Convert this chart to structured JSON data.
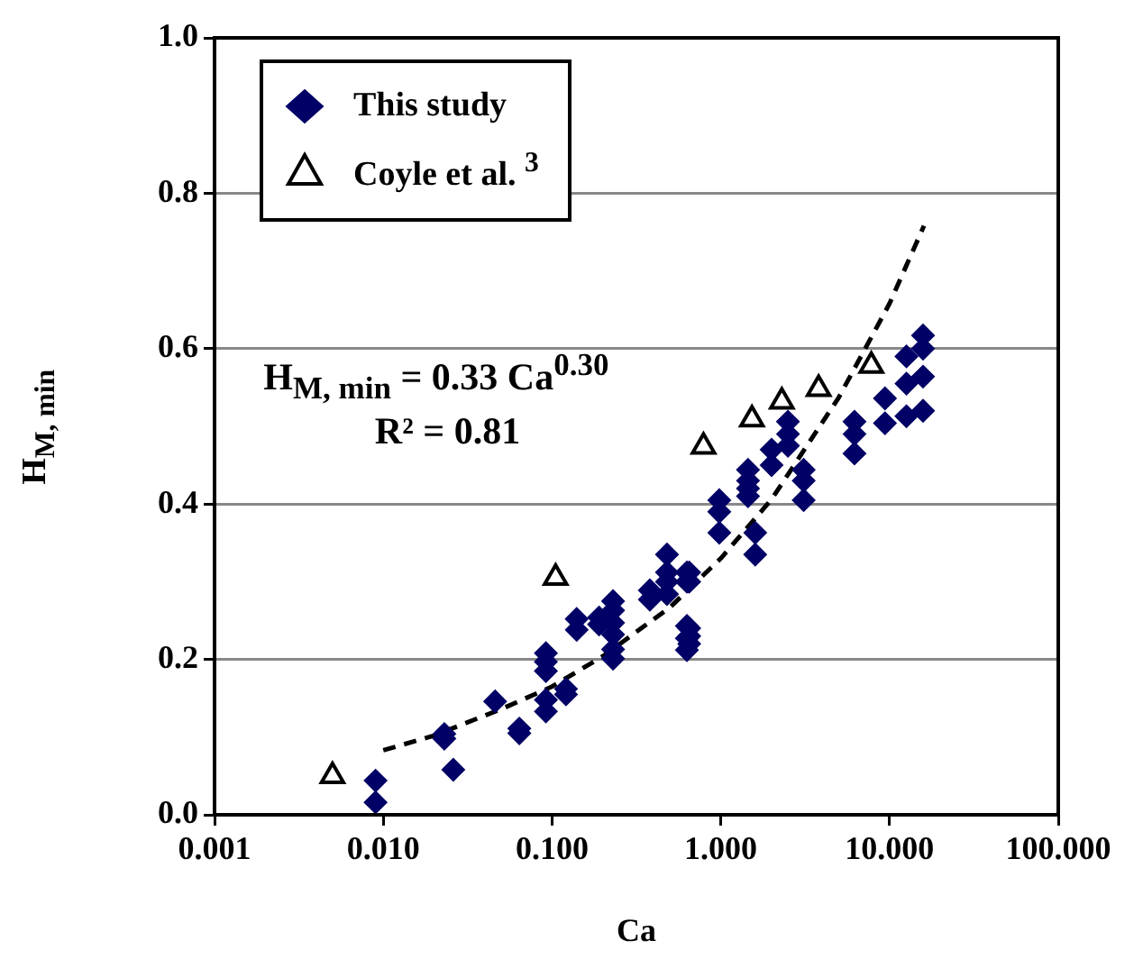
{
  "chart_data": {
    "type": "scatter",
    "xlabel": "Ca",
    "ylabel": "H$_{M, min}$",
    "log": "x",
    "grid": "y",
    "legend": "top left",
    "xlim": [
      0.001,
      100
    ],
    "xticks": [
      {
        "value": 0.001,
        "label": "0.001"
      },
      {
        "value": 0.01,
        "label": "0.010"
      },
      {
        "value": 0.1,
        "label": "0.100"
      },
      {
        "value": 1,
        "label": "1.000"
      },
      {
        "value": 10,
        "label": "10.000"
      },
      {
        "value": 100,
        "label": "100.000"
      }
    ],
    "ylim": [
      0,
      1
    ],
    "yticks": [
      {
        "value": 0,
        "label": "0.0"
      },
      {
        "value": 0.2,
        "label": "0.2"
      },
      {
        "value": 0.4,
        "label": "0.4"
      },
      {
        "value": 0.6,
        "label": "0.6"
      },
      {
        "value": 0.8,
        "label": "0.8"
      },
      {
        "value": 1,
        "label": "1.0"
      }
    ],
    "annotations": [
      "H$_{M, min}$ = 0.33 Ca$^{0.30}$",
      "R² = 0.81"
    ],
    "series": [
      {
        "name": "This study",
        "color": "#000066",
        "marker": "diamond",
        "x": [
          0.009,
          0.009,
          0.023,
          0.023,
          0.026,
          0.046,
          0.064,
          0.064,
          0.092,
          0.092,
          0.092,
          0.092,
          0.092,
          0.121,
          0.121,
          0.14,
          0.14,
          0.19,
          0.19,
          0.23,
          0.23,
          0.23,
          0.23,
          0.23,
          0.23,
          0.38,
          0.38,
          0.48,
          0.48,
          0.48,
          0.48,
          0.63,
          0.63,
          0.63,
          0.63,
          0.63,
          0.65,
          0.65,
          0.65,
          0.65,
          0.65,
          0.98,
          0.98,
          0.98,
          1.45,
          1.45,
          1.45,
          1.45,
          1.6,
          1.6,
          2,
          2,
          2.5,
          2.5,
          2.5,
          3.1,
          3.1,
          3.1,
          6.2,
          6.2,
          6.2,
          9.4,
          9.4,
          12.6,
          12.6,
          12.6,
          15.8,
          15.8,
          15.8,
          15.8
        ],
        "values": [
          0.044,
          0.016,
          0.104,
          0.098,
          0.058,
          0.146,
          0.111,
          0.105,
          0.208,
          0.197,
          0.185,
          0.148,
          0.133,
          0.162,
          0.155,
          0.252,
          0.238,
          0.254,
          0.245,
          0.275,
          0.263,
          0.247,
          0.232,
          0.213,
          0.201,
          0.289,
          0.277,
          0.335,
          0.312,
          0.3,
          0.284,
          0.312,
          0.3,
          0.243,
          0.227,
          0.212,
          0.312,
          0.3,
          0.24,
          0.23,
          0.22,
          0.405,
          0.39,
          0.363,
          0.444,
          0.43,
          0.42,
          0.41,
          0.363,
          0.335,
          0.47,
          0.45,
          0.506,
          0.49,
          0.475,
          0.444,
          0.43,
          0.405,
          0.506,
          0.49,
          0.465,
          0.536,
          0.504,
          0.59,
          0.555,
          0.513,
          0.617,
          0.6,
          0.564,
          0.52
        ]
      },
      {
        "name": "Coyle et al. $^{3}$",
        "color": "#000000",
        "marker": "triangle",
        "x": [
          0.005,
          0.105,
          0.79,
          1.53,
          2.3,
          3.8,
          7.8
        ],
        "values": [
          0.05,
          0.305,
          0.474,
          0.509,
          0.532,
          0.548,
          0.578
        ]
      },
      {
        "type": "line",
        "color": "#000000",
        "marker": "none",
        "line_style": "dashed",
        "x": [
          0.01,
          0.02,
          0.05,
          0.1,
          0.2,
          0.5,
          1,
          2,
          5,
          10,
          16
        ],
        "values": [
          0.083,
          0.102,
          0.136,
          0.165,
          0.204,
          0.267,
          0.33,
          0.406,
          0.537,
          0.658,
          0.758
        ]
      }
    ]
  }
}
